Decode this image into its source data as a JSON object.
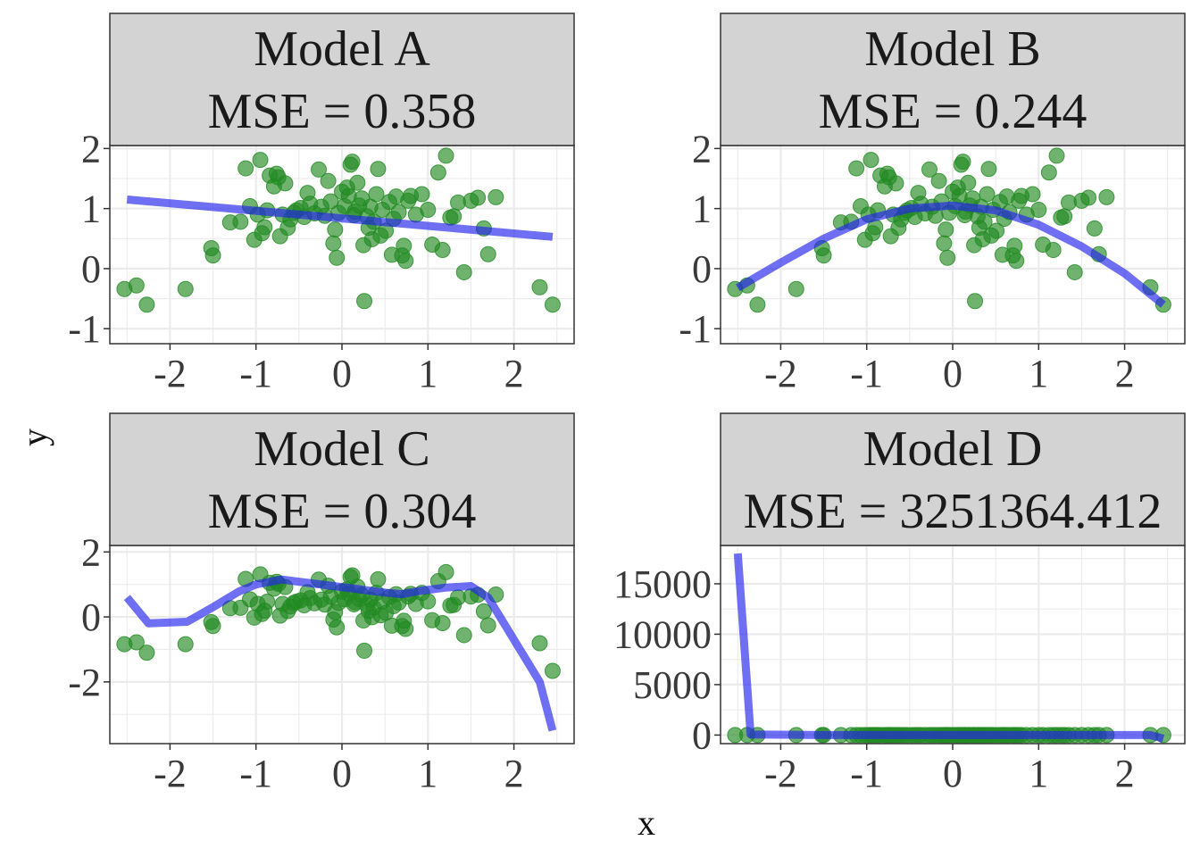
{
  "figure": {
    "xlabel": "x",
    "ylabel": "y",
    "colors": {
      "points": "#228B22",
      "fit_line": "#2222EE",
      "strip_fill": "#D3D3D3",
      "panel_border": "#333333",
      "grid": "#EBEBEB"
    }
  },
  "chart_data": [
    {
      "type": "scatter",
      "strip": [
        "Model A",
        "MSE = 0.358"
      ],
      "xlim": [
        -2.7,
        2.7
      ],
      "ylim": [
        -1.25,
        2.05
      ],
      "xticks": [
        -2,
        -1,
        0,
        1,
        2
      ],
      "yticks": [
        -1,
        0,
        1,
        2
      ],
      "fit_line": [
        [
          -2.5,
          1.15
        ],
        [
          2.45,
          0.53
        ]
      ]
    },
    {
      "type": "scatter",
      "strip": [
        "Model B",
        "MSE = 0.244"
      ],
      "xlim": [
        -2.7,
        2.7
      ],
      "ylim": [
        -1.25,
        2.05
      ],
      "xticks": [
        -2,
        -1,
        0,
        1,
        2
      ],
      "yticks": [
        -1,
        0,
        1,
        2
      ],
      "fit_line": [
        [
          -2.5,
          -0.32
        ],
        [
          -2.0,
          0.1
        ],
        [
          -1.5,
          0.5
        ],
        [
          -1.0,
          0.82
        ],
        [
          -0.5,
          1.0
        ],
        [
          0.0,
          1.05
        ],
        [
          0.5,
          0.97
        ],
        [
          1.0,
          0.73
        ],
        [
          1.5,
          0.37
        ],
        [
          2.0,
          -0.08
        ],
        [
          2.45,
          -0.6
        ]
      ]
    },
    {
      "type": "scatter",
      "strip": [
        "Model C",
        "MSE = 0.304"
      ],
      "xlim": [
        -2.7,
        2.7
      ],
      "ylim": [
        -3.9,
        2.2
      ],
      "xticks": [
        -2,
        -1,
        0,
        1,
        2
      ],
      "yticks": [
        -2,
        0,
        2
      ],
      "fit_line": [
        [
          -2.5,
          0.6
        ],
        [
          -2.25,
          -0.2
        ],
        [
          -1.8,
          -0.15
        ],
        [
          -1.5,
          0.3
        ],
        [
          -1.2,
          0.78
        ],
        [
          -1.0,
          1.0
        ],
        [
          -0.7,
          1.15
        ],
        [
          -0.4,
          1.05
        ],
        [
          -0.1,
          0.95
        ],
        [
          0.2,
          0.85
        ],
        [
          0.5,
          0.75
        ],
        [
          0.7,
          0.7
        ],
        [
          0.9,
          0.8
        ],
        [
          1.2,
          0.9
        ],
        [
          1.5,
          0.95
        ],
        [
          1.7,
          0.6
        ],
        [
          2.3,
          -2.0
        ],
        [
          2.45,
          -3.5
        ]
      ]
    },
    {
      "type": "scatter",
      "strip": [
        "Model D",
        "MSE = 3251364.412"
      ],
      "xlim": [
        -2.7,
        2.7
      ],
      "ylim": [
        -850,
        18800
      ],
      "xticks": [
        -2,
        -1,
        0,
        1,
        2
      ],
      "yticks": [
        0,
        5000,
        10000,
        15000
      ],
      "fit_line": [
        [
          -2.5,
          18000
        ],
        [
          -2.35,
          50
        ],
        [
          -1.5,
          0
        ],
        [
          0.0,
          0
        ],
        [
          1.5,
          0
        ],
        [
          2.3,
          0
        ],
        [
          2.45,
          -350
        ]
      ]
    }
  ],
  "points": [
    [
      -2.53,
      -0.34
    ],
    [
      -2.39,
      -0.28
    ],
    [
      -2.27,
      -0.6
    ],
    [
      -1.82,
      -0.34
    ],
    [
      -1.52,
      0.34
    ],
    [
      -1.5,
      0.22
    ],
    [
      -1.3,
      0.77
    ],
    [
      -1.18,
      0.78
    ],
    [
      -1.12,
      1.67
    ],
    [
      -1.07,
      1.04
    ],
    [
      -1.02,
      0.48
    ],
    [
      -0.98,
      0.9
    ],
    [
      -0.95,
      1.81
    ],
    [
      -0.93,
      0.59
    ],
    [
      -0.9,
      0.69
    ],
    [
      -0.87,
      0.97
    ],
    [
      -0.84,
      1.55
    ],
    [
      -0.79,
      1.37
    ],
    [
      -0.76,
      1.58
    ],
    [
      -0.74,
      1.52
    ],
    [
      -0.72,
      0.54
    ],
    [
      -0.69,
      0.9
    ],
    [
      -0.66,
      1.42
    ],
    [
      -0.63,
      0.68
    ],
    [
      -0.6,
      0.82
    ],
    [
      -0.56,
      0.93
    ],
    [
      -0.53,
      0.97
    ],
    [
      -0.48,
      1.01
    ],
    [
      -0.44,
      0.86
    ],
    [
      -0.4,
      1.26
    ],
    [
      -0.37,
      1.08
    ],
    [
      -0.32,
      0.92
    ],
    [
      -0.27,
      1.65
    ],
    [
      -0.24,
      1.03
    ],
    [
      -0.2,
      0.88
    ],
    [
      -0.16,
      1.46
    ],
    [
      -0.13,
      1.12
    ],
    [
      -0.1,
      0.42
    ],
    [
      -0.08,
      0.65
    ],
    [
      -0.06,
      0.18
    ],
    [
      -0.04,
      0.93
    ],
    [
      0.0,
      1.28
    ],
    [
      0.03,
      1.04
    ],
    [
      0.06,
      1.35
    ],
    [
      0.08,
      1.21
    ],
    [
      0.1,
      1.73
    ],
    [
      0.12,
      1.78
    ],
    [
      0.14,
      0.89
    ],
    [
      0.15,
      0.95
    ],
    [
      0.18,
      1.43
    ],
    [
      0.2,
      1.05
    ],
    [
      0.23,
      1.17
    ],
    [
      0.25,
      0.39
    ],
    [
      0.26,
      -0.54
    ],
    [
      0.29,
      0.87
    ],
    [
      0.31,
      0.68
    ],
    [
      0.33,
      1.03
    ],
    [
      0.35,
      0.49
    ],
    [
      0.37,
      0.78
    ],
    [
      0.4,
      1.24
    ],
    [
      0.42,
      1.66
    ],
    [
      0.45,
      0.55
    ],
    [
      0.47,
      0.98
    ],
    [
      0.51,
      0.63
    ],
    [
      0.55,
      1.11
    ],
    [
      0.58,
      0.23
    ],
    [
      0.6,
      0.83
    ],
    [
      0.63,
      1.2
    ],
    [
      0.66,
      0.94
    ],
    [
      0.7,
      0.22
    ],
    [
      0.72,
      0.38
    ],
    [
      0.74,
      0.13
    ],
    [
      0.77,
      1.13
    ],
    [
      0.8,
      1.21
    ],
    [
      0.86,
      0.9
    ],
    [
      0.93,
      1.24
    ],
    [
      1.0,
      0.98
    ],
    [
      1.05,
      0.4
    ],
    [
      1.12,
      1.6
    ],
    [
      1.17,
      0.31
    ],
    [
      1.21,
      1.88
    ],
    [
      1.26,
      0.85
    ],
    [
      1.3,
      0.87
    ],
    [
      1.35,
      1.1
    ],
    [
      1.42,
      -0.06
    ],
    [
      1.5,
      1.13
    ],
    [
      1.58,
      1.18
    ],
    [
      1.65,
      0.67
    ],
    [
      1.7,
      0.24
    ],
    [
      1.79,
      1.19
    ],
    [
      2.3,
      -0.31
    ],
    [
      2.45,
      -1.16
    ]
  ],
  "point_transforms": [
    {
      "x_from": -0.2,
      "y_shift": 0,
      "bottom_cap": -0.6
    },
    {
      "x_from": -0.2,
      "y_shift": 0,
      "bottom_cap": -0.6
    },
    {
      "x_from": 99,
      "y_shift": -0.5,
      "bottom_cap": -99
    },
    {
      "x_from": 99,
      "y_shift": 0,
      "bottom_cap": -99
    }
  ]
}
